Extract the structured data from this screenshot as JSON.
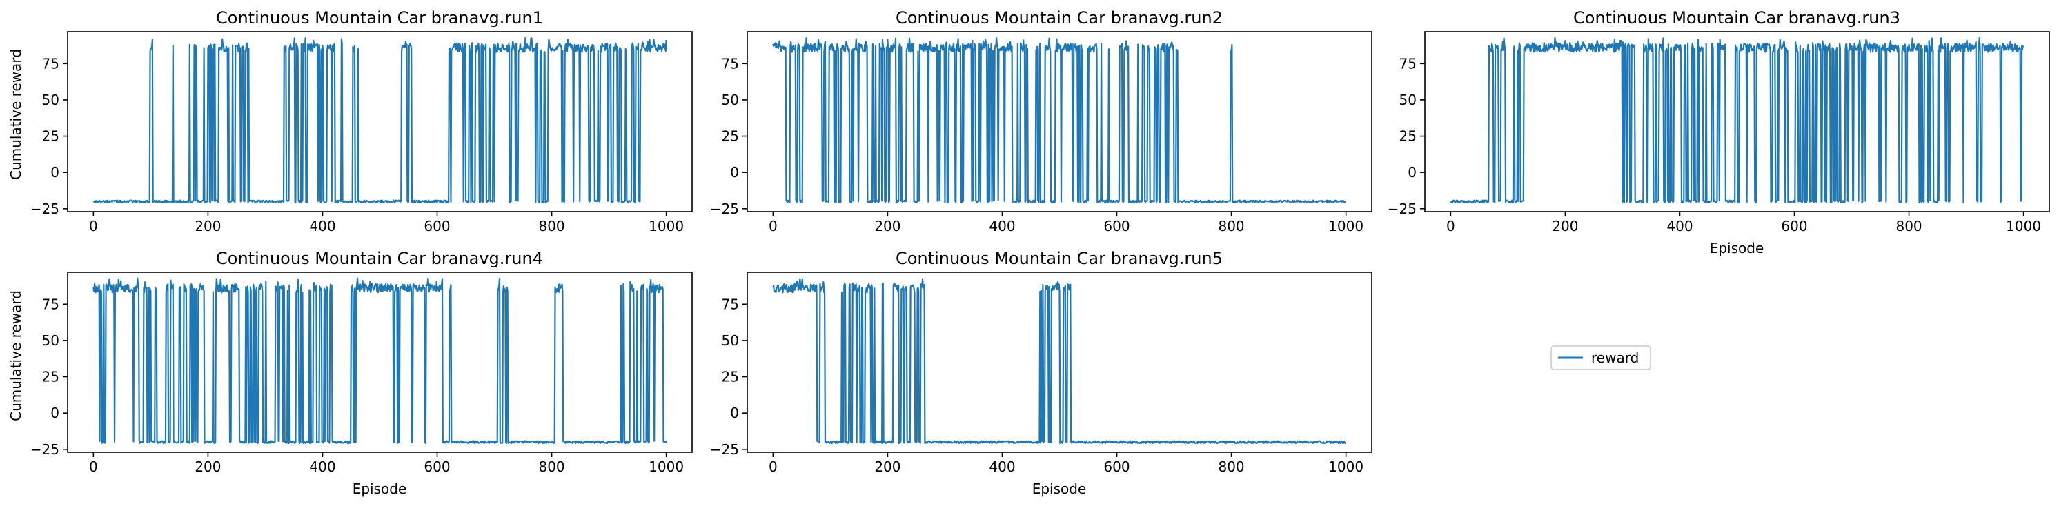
{
  "figure": {
    "legend": {
      "label": "reward",
      "color": "#1f77b4"
    }
  },
  "chart_data": [
    {
      "type": "line",
      "title": "Continuous Mountain Car branavg.run1",
      "xlabel": "",
      "ylabel": "Cumulative reward",
      "xlim": [
        -45,
        1045
      ],
      "ylim": [
        -27,
        97
      ],
      "xticks": [
        0,
        200,
        400,
        600,
        800,
        1000
      ],
      "yticks": [
        -25,
        0,
        25,
        50,
        75
      ],
      "series": [
        {
          "color": "#1f77b4",
          "low": -20,
          "high": 86,
          "segments": [
            {
              "range": [
                0,
                98
              ],
              "state": "low"
            },
            {
              "range": [
                98,
                165
              ],
              "state": "sparse",
              "density": 0.08
            },
            {
              "range": [
                165,
                275
              ],
              "state": "mixed",
              "density": 0.45
            },
            {
              "range": [
                275,
                330
              ],
              "state": "low"
            },
            {
              "range": [
                330,
                440
              ],
              "state": "mixed",
              "density": 0.55
            },
            {
              "range": [
                440,
                520
              ],
              "state": "sparse",
              "density": 0.08
            },
            {
              "range": [
                520,
                556
              ],
              "state": "mixed",
              "density": 0.6
            },
            {
              "range": [
                556,
                620
              ],
              "state": "low"
            },
            {
              "range": [
                620,
                690
              ],
              "state": "mixed",
              "density": 0.6
            },
            {
              "range": [
                690,
                775
              ],
              "state": "mixed",
              "density": 0.72
            },
            {
              "range": [
                775,
                845
              ],
              "state": "mixed",
              "density": 0.8
            },
            {
              "range": [
                845,
                960
              ],
              "state": "mixed",
              "density": 0.7
            },
            {
              "range": [
                960,
                1000
              ],
              "state": "high"
            }
          ]
        }
      ]
    },
    {
      "type": "line",
      "title": "Continuous Mountain Car branavg.run2",
      "xlabel": "",
      "ylabel": "",
      "xlim": [
        -45,
        1045
      ],
      "ylim": [
        -27,
        97
      ],
      "xticks": [
        0,
        200,
        400,
        600,
        800,
        1000
      ],
      "yticks": [
        -25,
        0,
        25,
        50,
        75
      ],
      "series": [
        {
          "color": "#1f77b4",
          "low": -20,
          "high": 86,
          "segments": [
            {
              "range": [
                0,
                90
              ],
              "state": "mixed",
              "density": 0.75
            },
            {
              "range": [
                90,
                250
              ],
              "state": "mixed",
              "density": 0.65
            },
            {
              "range": [
                250,
                400
              ],
              "state": "mixed",
              "density": 0.75
            },
            {
              "range": [
                400,
                560
              ],
              "state": "mixed",
              "density": 0.55
            },
            {
              "range": [
                560,
                720
              ],
              "state": "mixed",
              "density": 0.5
            },
            {
              "range": [
                720,
                795
              ],
              "state": "low"
            },
            {
              "range": [
                795,
                802
              ],
              "state": "mixed",
              "density": 1.0
            },
            {
              "range": [
                802,
                1000
              ],
              "state": "low"
            }
          ]
        }
      ]
    },
    {
      "type": "line",
      "title": "Continuous Mountain Car branavg.run3",
      "xlabel": "Episode",
      "ylabel": "",
      "xlim": [
        -45,
        1045
      ],
      "ylim": [
        -27,
        97
      ],
      "xticks": [
        0,
        200,
        400,
        600,
        800,
        1000
      ],
      "yticks": [
        -25,
        0,
        25,
        50,
        75
      ],
      "series": [
        {
          "color": "#1f77b4",
          "low": -20,
          "high": 86,
          "segments": [
            {
              "range": [
                0,
                65
              ],
              "state": "low"
            },
            {
              "range": [
                65,
                130
              ],
              "state": "mixed",
              "density": 0.5
            },
            {
              "range": [
                130,
                300
              ],
              "state": "high"
            },
            {
              "range": [
                300,
                500
              ],
              "state": "mixed",
              "density": 0.45
            },
            {
              "range": [
                500,
                560
              ],
              "state": "mixed",
              "density": 0.75
            },
            {
              "range": [
                560,
                690
              ],
              "state": "mixed",
              "density": 0.5
            },
            {
              "range": [
                690,
                850
              ],
              "state": "mixed",
              "density": 0.75
            },
            {
              "range": [
                850,
                1000
              ],
              "state": "mixed",
              "density": 0.93
            }
          ]
        }
      ]
    },
    {
      "type": "line",
      "title": "Continuous Mountain Car branavg.run4",
      "xlabel": "Episode",
      "ylabel": "Cumulative reward",
      "xlim": [
        -45,
        1045
      ],
      "ylim": [
        -27,
        97
      ],
      "xticks": [
        0,
        200,
        400,
        600,
        800,
        1000
      ],
      "yticks": [
        -25,
        0,
        25,
        50,
        75
      ],
      "series": [
        {
          "color": "#1f77b4",
          "low": -20,
          "high": 86,
          "segments": [
            {
              "range": [
                0,
                80
              ],
              "state": "mixed",
              "density": 0.85
            },
            {
              "range": [
                80,
                250
              ],
              "state": "mixed",
              "density": 0.5
            },
            {
              "range": [
                250,
                460
              ],
              "state": "mixed",
              "density": 0.45
            },
            {
              "range": [
                460,
                555
              ],
              "state": "mixed",
              "density": 0.9
            },
            {
              "range": [
                555,
                625
              ],
              "state": "mixed",
              "density": 0.7
            },
            {
              "range": [
                625,
                700
              ],
              "state": "low"
            },
            {
              "range": [
                700,
                725
              ],
              "state": "mixed",
              "density": 0.35
            },
            {
              "range": [
                725,
                805
              ],
              "state": "low"
            },
            {
              "range": [
                805,
                820
              ],
              "state": "mixed",
              "density": 0.9
            },
            {
              "range": [
                820,
                915
              ],
              "state": "low"
            },
            {
              "range": [
                915,
                1000
              ],
              "state": "mixed",
              "density": 0.6
            }
          ]
        }
      ]
    },
    {
      "type": "line",
      "title": "Continuous Mountain Car branavg.run5",
      "xlabel": "Episode",
      "ylabel": "",
      "xlim": [
        -45,
        1045
      ],
      "ylim": [
        -27,
        97
      ],
      "xticks": [
        0,
        200,
        400,
        600,
        800,
        1000
      ],
      "yticks": [
        -25,
        0,
        25,
        50,
        75
      ],
      "series": [
        {
          "color": "#1f77b4",
          "low": -20,
          "high": 86,
          "segments": [
            {
              "range": [
                0,
                65
              ],
              "state": "high"
            },
            {
              "range": [
                65,
                265
              ],
              "state": "mixed",
              "density": 0.5
            },
            {
              "range": [
                265,
                465
              ],
              "state": "low"
            },
            {
              "range": [
                465,
                520
              ],
              "state": "mixed",
              "density": 0.6
            },
            {
              "range": [
                520,
                1000
              ],
              "state": "low"
            }
          ]
        }
      ]
    }
  ]
}
